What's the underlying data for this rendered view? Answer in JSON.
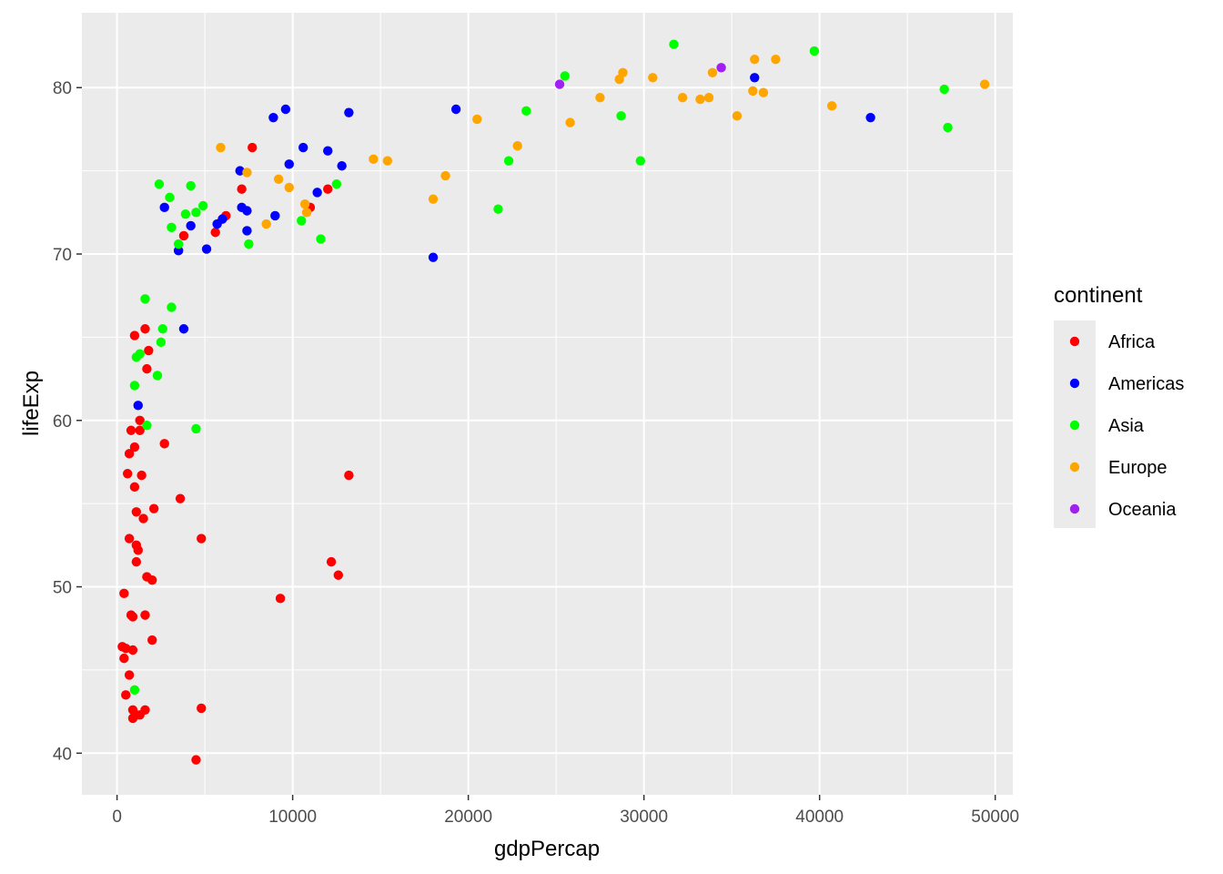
{
  "chart_data": {
    "type": "scatter",
    "xlabel": "gdpPercap",
    "ylabel": "lifeExp",
    "xlim": [
      -2000,
      51000
    ],
    "ylim": [
      37.5,
      84.5
    ],
    "x_ticks": [
      0,
      10000,
      20000,
      30000,
      40000,
      50000
    ],
    "x_tick_labels": [
      "0",
      "10000",
      "20000",
      "30000",
      "40000",
      "50000"
    ],
    "y_ticks": [
      40,
      50,
      60,
      70,
      80
    ],
    "y_tick_labels": [
      "40",
      "50",
      "60",
      "70",
      "80"
    ],
    "grid": true,
    "background_color": "#ebebeb",
    "legend": {
      "title": "continent",
      "placement": "right",
      "entries": [
        {
          "label": "Africa",
          "color": "#ff0000"
        },
        {
          "label": "Americas",
          "color": "#0000ff"
        },
        {
          "label": "Asia",
          "color": "#00ff00"
        },
        {
          "label": "Europe",
          "color": "#ffa500"
        },
        {
          "label": "Oceania",
          "color": "#a020f0"
        }
      ]
    },
    "series": [
      {
        "name": "Africa",
        "color": "#ff0000",
        "points": [
          [
            3800,
            71.1
          ],
          [
            5600,
            71.3
          ],
          [
            6200,
            72.3
          ],
          [
            7100,
            73.9
          ],
          [
            7700,
            76.4
          ],
          [
            12000,
            73.9
          ],
          [
            11000,
            72.8
          ],
          [
            1000,
            65.1
          ],
          [
            1600,
            65.5
          ],
          [
            1800,
            64.2
          ],
          [
            1700,
            63.1
          ],
          [
            1300,
            60.0
          ],
          [
            800,
            59.4
          ],
          [
            1300,
            59.4
          ],
          [
            2700,
            58.6
          ],
          [
            700,
            58.0
          ],
          [
            1000,
            58.4
          ],
          [
            600,
            56.8
          ],
          [
            1400,
            56.7
          ],
          [
            1000,
            56.0
          ],
          [
            1100,
            54.5
          ],
          [
            1500,
            54.1
          ],
          [
            2100,
            54.7
          ],
          [
            3600,
            55.3
          ],
          [
            700,
            52.9
          ],
          [
            1100,
            52.5
          ],
          [
            1200,
            52.2
          ],
          [
            1100,
            51.5
          ],
          [
            1700,
            50.6
          ],
          [
            2000,
            50.4
          ],
          [
            4800,
            52.9
          ],
          [
            9300,
            49.3
          ],
          [
            12200,
            51.5
          ],
          [
            12600,
            50.7
          ],
          [
            13200,
            56.7
          ],
          [
            400,
            49.6
          ],
          [
            800,
            48.3
          ],
          [
            900,
            48.2
          ],
          [
            1600,
            48.3
          ],
          [
            2000,
            46.8
          ],
          [
            300,
            46.4
          ],
          [
            500,
            46.3
          ],
          [
            900,
            46.2
          ],
          [
            400,
            45.7
          ],
          [
            700,
            44.7
          ],
          [
            500,
            43.5
          ],
          [
            900,
            42.6
          ],
          [
            1100,
            42.3
          ],
          [
            1600,
            42.6
          ],
          [
            900,
            42.1
          ],
          [
            1300,
            42.3
          ],
          [
            4800,
            42.7
          ],
          [
            4500,
            39.6
          ]
        ]
      },
      {
        "name": "Americas",
        "color": "#0000ff",
        "points": [
          [
            2700,
            72.8
          ],
          [
            3500,
            70.2
          ],
          [
            4200,
            71.7
          ],
          [
            5100,
            70.3
          ],
          [
            5700,
            71.8
          ],
          [
            6000,
            72.1
          ],
          [
            7000,
            75.0
          ],
          [
            7100,
            72.8
          ],
          [
            7400,
            72.6
          ],
          [
            7400,
            71.4
          ],
          [
            8900,
            78.2
          ],
          [
            9000,
            72.3
          ],
          [
            9600,
            78.7
          ],
          [
            9800,
            75.4
          ],
          [
            10600,
            76.4
          ],
          [
            11400,
            73.7
          ],
          [
            12000,
            76.2
          ],
          [
            12800,
            75.3
          ],
          [
            13200,
            78.5
          ],
          [
            18000,
            69.8
          ],
          [
            19300,
            78.7
          ],
          [
            36300,
            80.6
          ],
          [
            42900,
            78.2
          ],
          [
            1200,
            60.9
          ],
          [
            3800,
            65.5
          ]
        ]
      },
      {
        "name": "Asia",
        "color": "#00ff00",
        "points": [
          [
            2400,
            74.2
          ],
          [
            3000,
            73.4
          ],
          [
            3100,
            71.6
          ],
          [
            3500,
            70.6
          ],
          [
            3900,
            72.4
          ],
          [
            4200,
            74.1
          ],
          [
            4500,
            72.5
          ],
          [
            4900,
            72.9
          ],
          [
            7500,
            70.6
          ],
          [
            10500,
            72.0
          ],
          [
            11600,
            70.9
          ],
          [
            12500,
            74.2
          ],
          [
            1600,
            67.3
          ],
          [
            3100,
            66.8
          ],
          [
            2600,
            65.5
          ],
          [
            2500,
            64.7
          ],
          [
            1300,
            64.0
          ],
          [
            1100,
            63.8
          ],
          [
            2300,
            62.7
          ],
          [
            1000,
            62.1
          ],
          [
            1700,
            59.7
          ],
          [
            4500,
            59.5
          ],
          [
            1000,
            43.8
          ],
          [
            21700,
            72.7
          ],
          [
            22300,
            75.6
          ],
          [
            23300,
            78.6
          ],
          [
            25500,
            80.7
          ],
          [
            28700,
            78.3
          ],
          [
            29800,
            75.6
          ],
          [
            31700,
            82.6
          ],
          [
            39700,
            82.2
          ],
          [
            47100,
            79.9
          ],
          [
            47300,
            77.6
          ]
        ]
      },
      {
        "name": "Europe",
        "color": "#ffa500",
        "points": [
          [
            5900,
            76.4
          ],
          [
            7400,
            74.9
          ],
          [
            8500,
            71.8
          ],
          [
            9200,
            74.5
          ],
          [
            9800,
            74.0
          ],
          [
            10700,
            73.0
          ],
          [
            10800,
            72.5
          ],
          [
            14600,
            75.7
          ],
          [
            15400,
            75.6
          ],
          [
            18000,
            73.3
          ],
          [
            18700,
            74.7
          ],
          [
            20500,
            78.1
          ],
          [
            22800,
            76.5
          ],
          [
            25800,
            77.9
          ],
          [
            27500,
            79.4
          ],
          [
            28600,
            80.5
          ],
          [
            28800,
            80.9
          ],
          [
            30500,
            80.6
          ],
          [
            32200,
            79.4
          ],
          [
            33200,
            79.3
          ],
          [
            33700,
            79.4
          ],
          [
            33900,
            80.9
          ],
          [
            35300,
            78.3
          ],
          [
            36200,
            79.8
          ],
          [
            36300,
            81.7
          ],
          [
            36800,
            79.7
          ],
          [
            37500,
            81.7
          ],
          [
            40700,
            78.9
          ],
          [
            49400,
            80.2
          ]
        ]
      },
      {
        "name": "Oceania",
        "color": "#a020f0",
        "points": [
          [
            25200,
            80.2
          ],
          [
            34400,
            81.2
          ]
        ]
      }
    ]
  }
}
